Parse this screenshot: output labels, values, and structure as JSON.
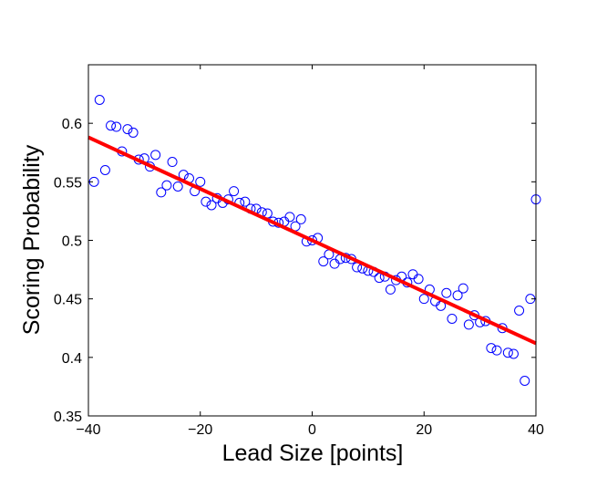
{
  "chart_data": {
    "type": "scatter",
    "xlabel": "Lead Size [points]",
    "ylabel": "Scoring Probability",
    "xlim": [
      -40,
      40
    ],
    "ylim": [
      0.35,
      0.65
    ],
    "xticks": [
      -40,
      -20,
      0,
      20,
      40
    ],
    "xtick_labels": [
      "−40",
      "−20",
      "0",
      "20",
      "40"
    ],
    "yticks": [
      0.35,
      0.4,
      0.45,
      0.5,
      0.55,
      0.6
    ],
    "ytick_labels": [
      "0.35",
      "0.4",
      "0.45",
      "0.5",
      "0.55",
      "0.6"
    ],
    "grid": false,
    "legend": "none",
    "marker_color": "#0000ff",
    "fit_color": "#ff0000",
    "series": [
      {
        "kind": "scatter",
        "marker": "open-circle",
        "points": [
          [
            -39,
            0.55
          ],
          [
            -38,
            0.62
          ],
          [
            -37,
            0.56
          ],
          [
            -36,
            0.598
          ],
          [
            -35,
            0.597
          ],
          [
            -34,
            0.576
          ],
          [
            -33,
            0.595
          ],
          [
            -32,
            0.592
          ],
          [
            -31,
            0.569
          ],
          [
            -30,
            0.57
          ],
          [
            -29,
            0.563
          ],
          [
            -28,
            0.573
          ],
          [
            -27,
            0.541
          ],
          [
            -26,
            0.547
          ],
          [
            -25,
            0.567
          ],
          [
            -24,
            0.546
          ],
          [
            -23,
            0.556
          ],
          [
            -22,
            0.553
          ],
          [
            -21,
            0.542
          ],
          [
            -20,
            0.55
          ],
          [
            -19,
            0.533
          ],
          [
            -18,
            0.53
          ],
          [
            -17,
            0.536
          ],
          [
            -16,
            0.532
          ],
          [
            -15,
            0.535
          ],
          [
            -14,
            0.542
          ],
          [
            -13,
            0.532
          ],
          [
            -12,
            0.533
          ],
          [
            -11,
            0.527
          ],
          [
            -10,
            0.527
          ],
          [
            -9,
            0.524
          ],
          [
            -8,
            0.523
          ],
          [
            -7,
            0.516
          ],
          [
            -6,
            0.515
          ],
          [
            -5,
            0.516
          ],
          [
            -4,
            0.52
          ],
          [
            -3,
            0.512
          ],
          [
            -2,
            0.518
          ],
          [
            -1,
            0.499
          ],
          [
            0,
            0.5
          ],
          [
            1,
            0.502
          ],
          [
            2,
            0.482
          ],
          [
            3,
            0.488
          ],
          [
            4,
            0.48
          ],
          [
            5,
            0.484
          ],
          [
            6,
            0.485
          ],
          [
            7,
            0.484
          ],
          [
            8,
            0.477
          ],
          [
            9,
            0.476
          ],
          [
            10,
            0.474
          ],
          [
            11,
            0.473
          ],
          [
            12,
            0.468
          ],
          [
            13,
            0.469
          ],
          [
            14,
            0.458
          ],
          [
            15,
            0.466
          ],
          [
            16,
            0.469
          ],
          [
            17,
            0.464
          ],
          [
            18,
            0.471
          ],
          [
            19,
            0.467
          ],
          [
            20,
            0.45
          ],
          [
            21,
            0.458
          ],
          [
            22,
            0.448
          ],
          [
            23,
            0.444
          ],
          [
            24,
            0.455
          ],
          [
            25,
            0.433
          ],
          [
            26,
            0.453
          ],
          [
            27,
            0.459
          ],
          [
            28,
            0.428
          ],
          [
            29,
            0.436
          ],
          [
            30,
            0.43
          ],
          [
            31,
            0.431
          ],
          [
            32,
            0.408
          ],
          [
            33,
            0.406
          ],
          [
            34,
            0.425
          ],
          [
            35,
            0.404
          ],
          [
            36,
            0.403
          ],
          [
            37,
            0.44
          ],
          [
            38,
            0.38
          ],
          [
            39,
            0.45
          ],
          [
            40,
            0.535
          ]
        ]
      },
      {
        "kind": "line",
        "style": "linear-fit",
        "points": [
          [
            -40,
            0.588
          ],
          [
            40,
            0.412
          ]
        ]
      }
    ]
  }
}
